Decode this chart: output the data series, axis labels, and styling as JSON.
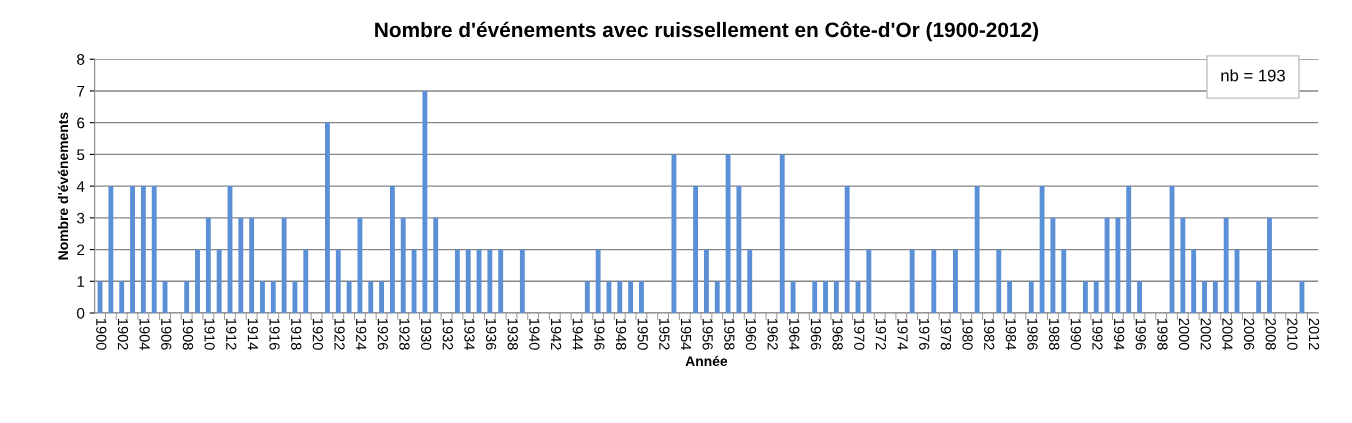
{
  "chart_data": {
    "type": "bar",
    "title": "Nombre d'événements avec ruissellement en Côte-d'Or (1900-2012)",
    "xlabel": "Année",
    "ylabel": "Nombre d'événements",
    "categories": [
      "1900",
      null,
      "1902",
      null,
      "1904",
      null,
      "1906",
      null,
      "1908",
      null,
      "1910",
      null,
      "1912",
      null,
      "1914",
      null,
      "1916",
      null,
      "1918",
      null,
      "1920",
      null,
      "1922",
      null,
      "1924",
      null,
      "1926",
      null,
      "1928",
      null,
      "1930",
      null,
      "1932",
      null,
      "1934",
      null,
      "1936",
      null,
      "1938",
      null,
      "1940",
      null,
      "1942",
      null,
      "1944",
      null,
      "1946",
      null,
      "1948",
      null,
      "1950",
      null,
      "1952",
      null,
      "1954",
      null,
      "1956",
      null,
      "1958",
      null,
      "1960",
      null,
      "1962",
      null,
      "1964",
      null,
      "1966",
      null,
      "1968",
      null,
      "1970",
      null,
      "1972",
      null,
      "1974",
      null,
      "1976",
      null,
      "1978",
      null,
      "1980",
      null,
      "1982",
      null,
      "1984",
      null,
      "1986",
      null,
      "1988",
      null,
      "1990",
      null,
      "1992",
      null,
      "1994",
      null,
      "1996",
      null,
      "1998",
      null,
      "2000",
      null,
      "2002",
      null,
      "2004",
      null,
      "2006",
      null,
      "2008",
      null,
      "2010",
      null,
      "2012"
    ],
    "values": [
      1,
      4,
      1,
      4,
      4,
      4,
      1,
      0,
      1,
      2,
      3,
      2,
      4,
      3,
      3,
      1,
      1,
      3,
      1,
      2,
      0,
      6,
      2,
      1,
      3,
      1,
      1,
      4,
      3,
      2,
      7,
      3,
      0,
      2,
      2,
      2,
      2,
      2,
      0,
      2,
      0,
      0,
      0,
      0,
      0,
      1,
      2,
      1,
      1,
      1,
      1,
      0,
      0,
      5,
      0,
      4,
      2,
      1,
      5,
      4,
      2,
      0,
      0,
      5,
      1,
      0,
      1,
      1,
      1,
      4,
      1,
      2,
      0,
      0,
      0,
      2,
      0,
      2,
      0,
      2,
      0,
      4,
      0,
      2,
      1,
      0,
      1,
      4,
      3,
      2,
      0,
      1,
      1,
      3,
      3,
      4,
      1,
      0,
      0,
      4,
      3,
      2,
      1,
      1,
      3,
      2,
      0,
      1,
      3,
      0,
      0,
      1,
      0
    ],
    "color": "#5b8fd6",
    "ylim": [
      0,
      8
    ],
    "yticks": [
      0,
      1,
      2,
      3,
      4,
      5,
      6,
      7,
      8
    ],
    "grid": "y",
    "legend": false,
    "annotations": [
      "nb = 193"
    ]
  }
}
